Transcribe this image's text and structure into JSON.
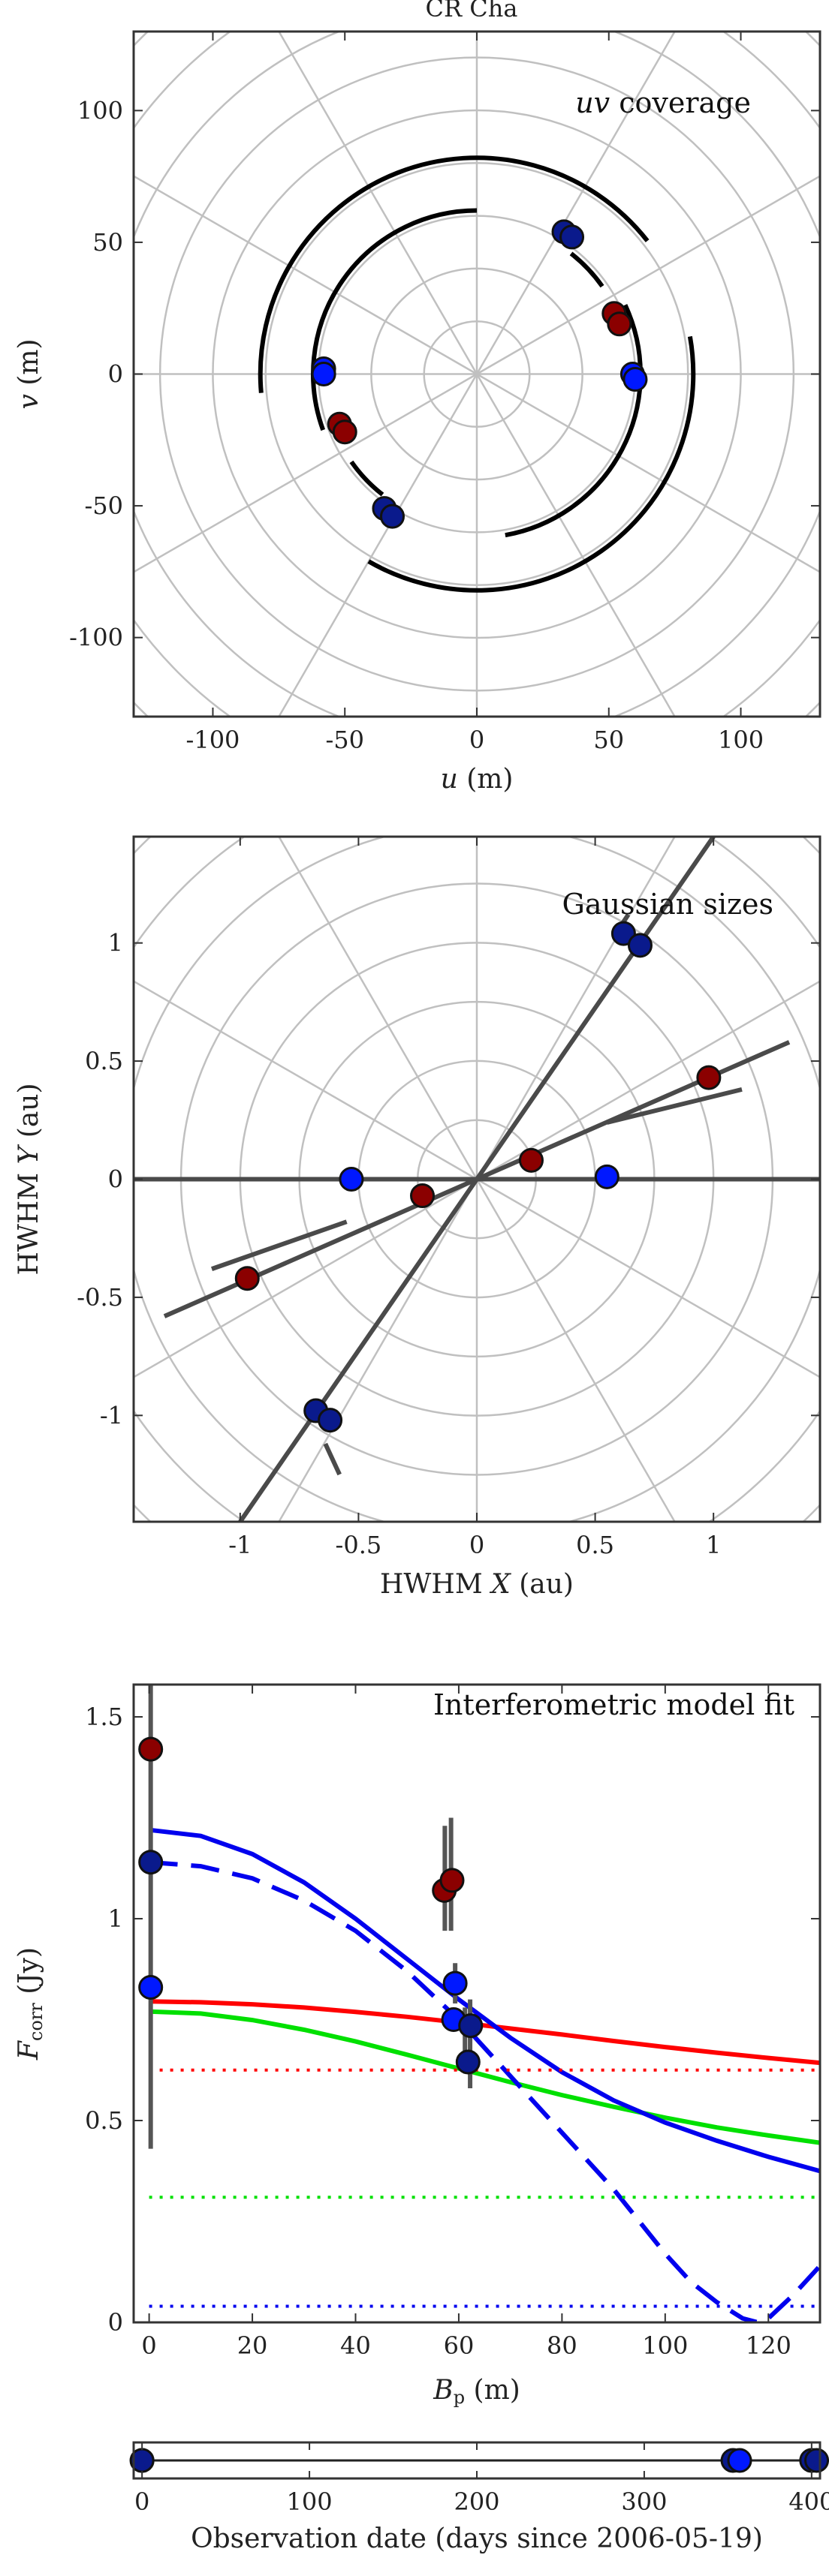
{
  "figure_title": "CR Cha",
  "colors": {
    "grid": "#c0c0c0",
    "axis": "#333333",
    "red_marker": "#8b0000",
    "blue_marker": "#0018ff",
    "navy_marker": "#0a1a8c",
    "red_line": "#ff0000",
    "green_line": "#00e000",
    "blue_line": "#0000ee",
    "track": "#000000",
    "gray_line": "#4a4a4a"
  },
  "chart_data": [
    {
      "id": "uv",
      "type": "scatter",
      "annotation_html": "<tspan font-style='italic'>uv</tspan> coverage",
      "annotation": "uv coverage",
      "xlabel_html": "<tspan font-style='italic'>u</tspan> (m)",
      "xlabel": "u (m)",
      "ylabel_html": "<tspan font-style='italic'>v</tspan> (m)",
      "ylabel": "v (m)",
      "xlim": [
        -130,
        130
      ],
      "ylim": [
        -130,
        130
      ],
      "xticks": [
        -100,
        -50,
        0,
        50,
        100
      ],
      "yticks": [
        -100,
        -50,
        0,
        50,
        100
      ],
      "polar_grid": {
        "radii": [
          20,
          40,
          60,
          80,
          100,
          120,
          140,
          160,
          180
        ],
        "spoke_step_deg": 30
      },
      "tracks": [
        {
          "r": 62,
          "from_deg": 90,
          "to_deg": 200
        },
        {
          "r": 62,
          "from_deg": -80,
          "to_deg": 25
        },
        {
          "r": 82,
          "from_deg": 38,
          "to_deg": 185
        },
        {
          "r": 82,
          "from_deg": -120,
          "to_deg": 10
        },
        {
          "r": 58,
          "from_deg": 35,
          "to_deg": 52
        },
        {
          "r": 58,
          "from_deg": 215,
          "to_deg": 232
        }
      ],
      "points": [
        {
          "x": 33,
          "y": 54,
          "color": "navy"
        },
        {
          "x": 36,
          "y": 52,
          "color": "navy"
        },
        {
          "x": 52,
          "y": 23,
          "color": "red"
        },
        {
          "x": 54,
          "y": 19,
          "color": "red"
        },
        {
          "x": 59,
          "y": 0,
          "color": "blue"
        },
        {
          "x": 60,
          "y": -2,
          "color": "blue"
        },
        {
          "x": -58,
          "y": 2,
          "color": "blue"
        },
        {
          "x": -58,
          "y": 0,
          "color": "blue"
        },
        {
          "x": -52,
          "y": -19,
          "color": "red"
        },
        {
          "x": -50,
          "y": -22,
          "color": "red"
        },
        {
          "x": -35,
          "y": -51,
          "color": "navy"
        },
        {
          "x": -32,
          "y": -54,
          "color": "navy"
        }
      ]
    },
    {
      "id": "sizes",
      "type": "scatter",
      "annotation": "Gaussian sizes",
      "xlabel_html": "HWHM <tspan font-style='italic'>X</tspan> (au)",
      "xlabel": "HWHM X (au)",
      "ylabel_html": "HWHM <tspan font-style='italic'>Y</tspan> (au)",
      "ylabel": "HWHM Y (au)",
      "xlim": [
        -1.45,
        1.45
      ],
      "ylim": [
        -1.45,
        1.45
      ],
      "xticks": [
        -1,
        -0.5,
        0,
        0.5,
        1
      ],
      "yticks": [
        -1,
        -0.5,
        0,
        0.5,
        1
      ],
      "polar_grid": {
        "radii": [
          0.25,
          0.5,
          0.75,
          1.0,
          1.25,
          1.5,
          1.75,
          2.0
        ],
        "spoke_step_deg": 30
      },
      "lines": [
        {
          "x1": -1.45,
          "y1": 0,
          "x2": 1.45,
          "y2": 0
        },
        {
          "x1": -1.0,
          "y1": -1.45,
          "x2": 1.0,
          "y2": 1.45
        },
        {
          "x1": -1.32,
          "y1": -0.58,
          "x2": 1.32,
          "y2": 0.58
        },
        {
          "x1": -1.12,
          "y1": -0.38,
          "x2": -0.55,
          "y2": -0.18
        },
        {
          "x1": 0.55,
          "y1": 0.24,
          "x2": 1.12,
          "y2": 0.38
        },
        {
          "x1": -0.64,
          "y1": -1.12,
          "x2": -0.58,
          "y2": -1.25
        },
        {
          "x1": 0.58,
          "y1": 1.03,
          "x2": 0.64,
          "y2": 1.12
        }
      ],
      "points": [
        {
          "x": 0.62,
          "y": 1.04,
          "color": "navy"
        },
        {
          "x": 0.69,
          "y": 0.99,
          "color": "navy"
        },
        {
          "x": 0.98,
          "y": 0.43,
          "color": "red"
        },
        {
          "x": 0.23,
          "y": 0.08,
          "color": "red"
        },
        {
          "x": 0.55,
          "y": 0.01,
          "color": "blue"
        },
        {
          "x": -0.53,
          "y": 0.0,
          "color": "blue"
        },
        {
          "x": -0.23,
          "y": -0.07,
          "color": "red"
        },
        {
          "x": -0.97,
          "y": -0.42,
          "color": "red"
        },
        {
          "x": -0.68,
          "y": -0.98,
          "color": "navy"
        },
        {
          "x": -0.62,
          "y": -1.02,
          "color": "navy"
        }
      ]
    },
    {
      "id": "fit",
      "type": "line",
      "annotation": "Interferometric model fit",
      "xlabel_html": "<tspan font-style='italic'>B</tspan><tspan font-size='24' dy='6'>p</tspan><tspan dy='-6'> (m)</tspan>",
      "xlabel": "Bp (m)",
      "ylabel_html": "<tspan font-style='italic'>F</tspan><tspan font-size='24' dy='6'>corr</tspan><tspan dy='-6'> (Jy)</tspan>",
      "ylabel": "Fcorr (Jy)",
      "xlim": [
        -3,
        130
      ],
      "ylim": [
        0,
        1.58
      ],
      "xticks": [
        0,
        20,
        40,
        60,
        80,
        100,
        120
      ],
      "yticks": [
        0,
        0.5,
        1,
        1.5
      ],
      "series": [
        {
          "color": "red",
          "style": "solid",
          "x": [
            0,
            10,
            20,
            30,
            40,
            50,
            60,
            70,
            80,
            90,
            100,
            110,
            120,
            130
          ],
          "y": [
            0.795,
            0.793,
            0.788,
            0.78,
            0.769,
            0.757,
            0.743,
            0.728,
            0.713,
            0.697,
            0.682,
            0.668,
            0.655,
            0.643
          ]
        },
        {
          "color": "green",
          "style": "solid",
          "x": [
            0,
            10,
            20,
            30,
            40,
            50,
            60,
            70,
            80,
            90,
            100,
            110,
            120,
            130
          ],
          "y": [
            0.77,
            0.765,
            0.749,
            0.725,
            0.696,
            0.663,
            0.629,
            0.595,
            0.563,
            0.534,
            0.507,
            0.483,
            0.463,
            0.445
          ]
        },
        {
          "color": "blue",
          "style": "solid",
          "x": [
            0,
            10,
            20,
            30,
            40,
            50,
            60,
            70,
            80,
            90,
            100,
            110,
            120,
            130
          ],
          "y": [
            1.22,
            1.205,
            1.16,
            1.09,
            1.0,
            0.9,
            0.8,
            0.705,
            0.62,
            0.55,
            0.495,
            0.45,
            0.41,
            0.375
          ]
        },
        {
          "color": "blue",
          "style": "dashed",
          "x": [
            0,
            10,
            20,
            30,
            40,
            50,
            60,
            70,
            80,
            90,
            100,
            105,
            110,
            115,
            118,
            120,
            125,
            130
          ],
          "y": [
            1.14,
            1.13,
            1.1,
            1.045,
            0.97,
            0.87,
            0.75,
            0.61,
            0.47,
            0.33,
            0.17,
            0.1,
            0.05,
            0.01,
            0.0,
            0.01,
            0.07,
            0.14
          ]
        },
        {
          "color": "red",
          "style": "dotted",
          "x": [
            0,
            130
          ],
          "y": [
            0.625,
            0.625
          ]
        },
        {
          "color": "green",
          "style": "dotted",
          "x": [
            0,
            130
          ],
          "y": [
            0.31,
            0.31
          ]
        },
        {
          "color": "blue",
          "style": "dotted",
          "x": [
            0,
            130
          ],
          "y": [
            0.04,
            0.04
          ]
        }
      ],
      "errorbars": [
        {
          "x": 0.3,
          "y": 1.0,
          "lo": 0.43,
          "hi": 1.58
        },
        {
          "x": 57.3,
          "y": 1.07,
          "lo": 0.97,
          "hi": 1.23
        },
        {
          "x": 58.5,
          "y": 1.095,
          "lo": 0.97,
          "hi": 1.25
        },
        {
          "x": 59.3,
          "y": 0.84,
          "lo": 0.79,
          "hi": 0.89
        },
        {
          "x": 61.2,
          "y": 0.7,
          "lo": 0.62,
          "hi": 0.78
        },
        {
          "x": 62.2,
          "y": 0.69,
          "lo": 0.58,
          "hi": 0.8
        }
      ],
      "points": [
        {
          "x": 0.3,
          "y": 1.42,
          "color": "red"
        },
        {
          "x": 0.3,
          "y": 1.14,
          "color": "navy"
        },
        {
          "x": 0.3,
          "y": 0.83,
          "color": "blue"
        },
        {
          "x": 57.2,
          "y": 1.07,
          "color": "red"
        },
        {
          "x": 58.7,
          "y": 1.095,
          "color": "red"
        },
        {
          "x": 59.3,
          "y": 0.84,
          "color": "blue"
        },
        {
          "x": 59.0,
          "y": 0.75,
          "color": "blue"
        },
        {
          "x": 62.3,
          "y": 0.735,
          "color": "navy"
        },
        {
          "x": 61.8,
          "y": 0.645,
          "color": "navy"
        }
      ]
    },
    {
      "id": "dates",
      "type": "scatter",
      "xlabel": "Observation date (days since 2006-05-19)",
      "xlim": [
        -5,
        405
      ],
      "xticks": [
        0,
        100,
        200,
        300,
        400
      ],
      "points": [
        {
          "x": 0,
          "color": "red"
        },
        {
          "x": 0,
          "color": "navy"
        },
        {
          "x": 353,
          "color": "navy"
        },
        {
          "x": 357,
          "color": "blue"
        },
        {
          "x": 400,
          "color": "navy"
        },
        {
          "x": 403,
          "color": "navy"
        }
      ]
    }
  ]
}
